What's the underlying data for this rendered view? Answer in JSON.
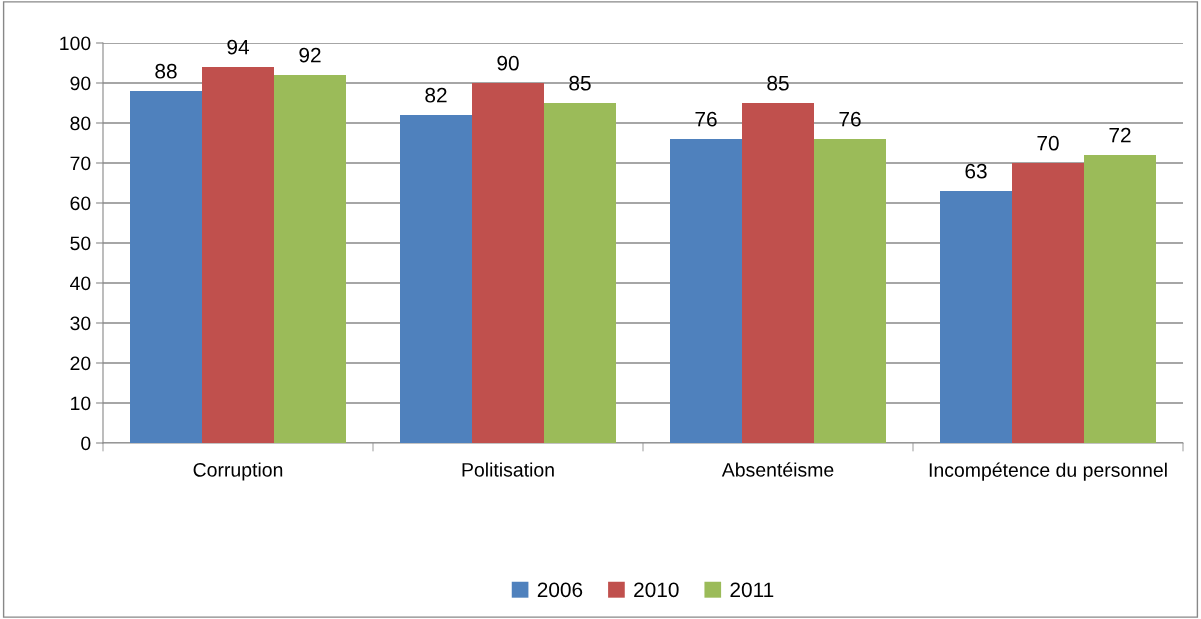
{
  "chart_data": {
    "type": "bar",
    "categories": [
      "Corruption",
      "Politisation",
      "Absentéisme",
      "Incompétence du personnel"
    ],
    "series": [
      {
        "name": "2006",
        "color": "#4f81bd",
        "values": [
          88,
          82,
          76,
          63
        ]
      },
      {
        "name": "2010",
        "color": "#c0504d",
        "values": [
          94,
          90,
          85,
          70
        ]
      },
      {
        "name": "2011",
        "color": "#9bbb59",
        "values": [
          92,
          85,
          76,
          72
        ]
      }
    ],
    "ylim": [
      0,
      100
    ],
    "yticks": [
      0,
      10,
      20,
      30,
      40,
      50,
      60,
      70,
      80,
      90,
      100
    ],
    "grid": "y",
    "legend": "bottom",
    "data_labels": true
  }
}
